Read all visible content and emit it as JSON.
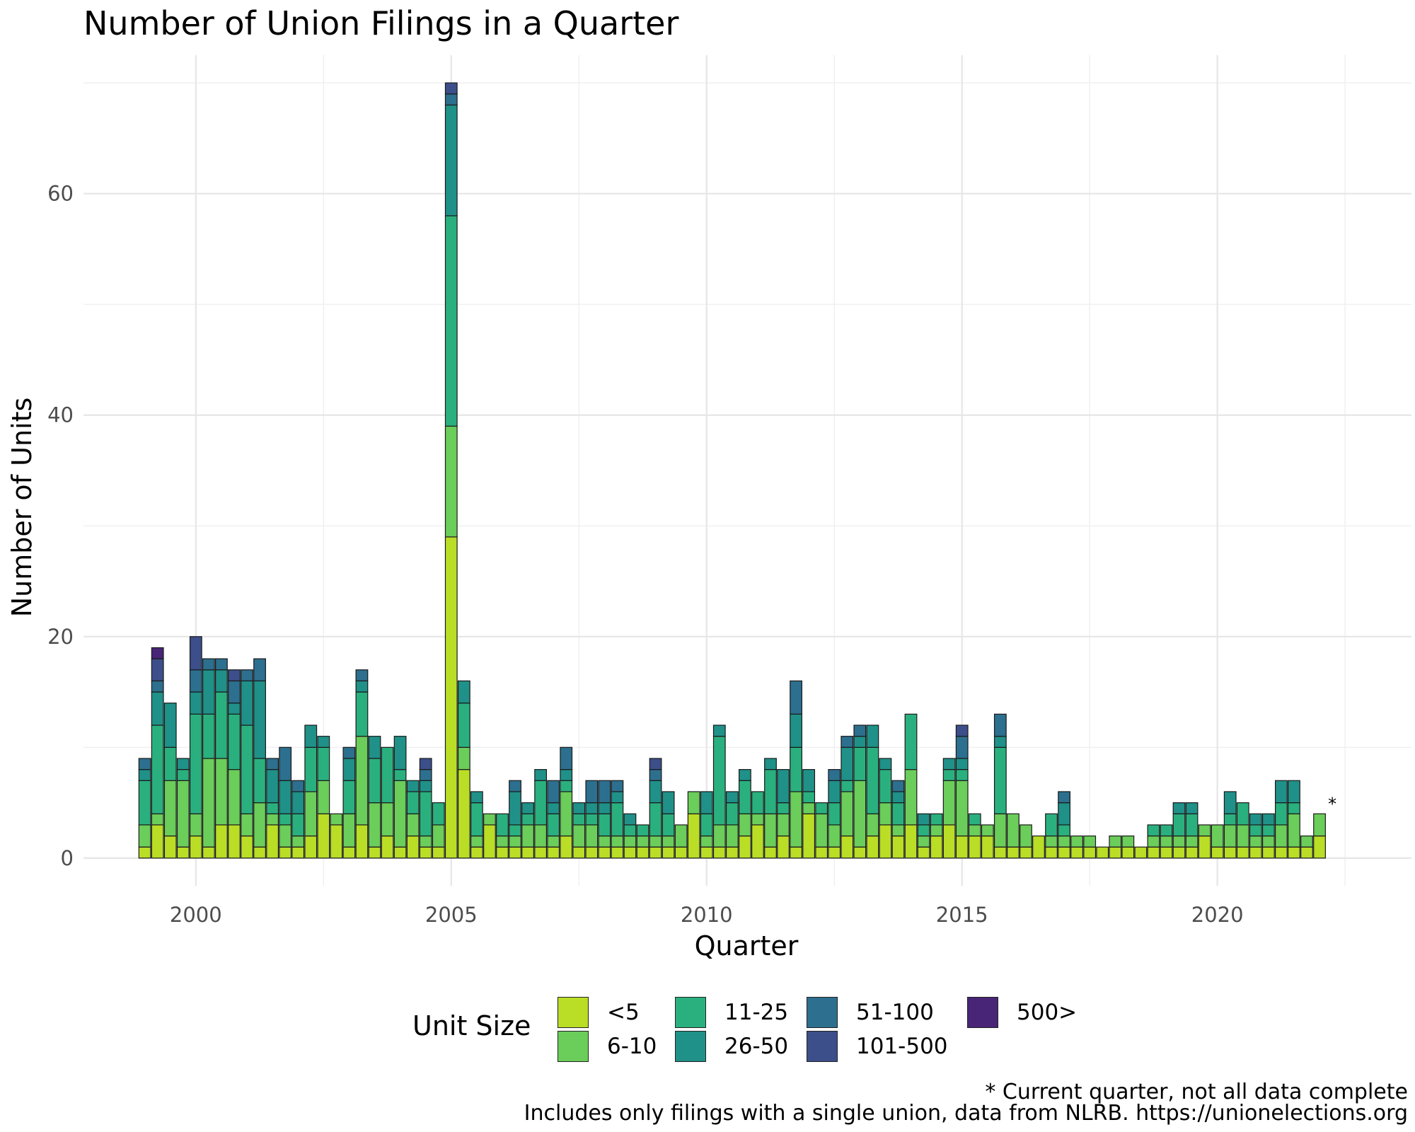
{
  "title": "Number of Union Filings in a Quarter",
  "footnotes": {
    "line1": "* Current quarter, not all data complete",
    "line2": "Includes only filings with a single union, data from NLRB. https://unionelections.org"
  },
  "legend": {
    "title": "Unit Size",
    "items": [
      {
        "label": "<5",
        "color": "#BADD26"
      },
      {
        "label": "6-10",
        "color": "#6BCD5A"
      },
      {
        "label": "11-25",
        "color": "#2AB07F"
      },
      {
        "label": "26-50",
        "color": "#1F9188"
      },
      {
        "label": "51-100",
        "color": "#2D6F8E"
      },
      {
        "label": "101-500",
        "color": "#3C4F8A"
      },
      {
        "label": "500>",
        "color": "#482576"
      }
    ]
  },
  "chart_data": {
    "type": "bar",
    "stacked": true,
    "xlabel": "Quarter",
    "ylabel": "Number of Units",
    "xlim": [
      1997.8,
      2023.8
    ],
    "ylim": [
      -2.5,
      72.5
    ],
    "xticks": [
      2000,
      2005,
      2010,
      2015,
      2020
    ],
    "yticks": [
      0,
      20,
      40,
      60
    ],
    "grid": true,
    "legend_position": "bottom",
    "annotation": {
      "text": "*",
      "x": 2022.25,
      "y": 4
    },
    "series_order": [
      "<5",
      "6-10",
      "11-25",
      "26-50",
      "51-100",
      "101-500",
      "500>"
    ],
    "x": [
      1999.0,
      1999.25,
      1999.5,
      1999.75,
      2000.0,
      2000.25,
      2000.5,
      2000.75,
      2001.0,
      2001.25,
      2001.5,
      2001.75,
      2002.0,
      2002.25,
      2002.5,
      2002.75,
      2003.0,
      2003.25,
      2003.5,
      2003.75,
      2004.0,
      2004.25,
      2004.5,
      2004.75,
      2005.0,
      2005.25,
      2005.5,
      2005.75,
      2006.0,
      2006.25,
      2006.5,
      2006.75,
      2007.0,
      2007.25,
      2007.5,
      2007.75,
      2008.0,
      2008.25,
      2008.5,
      2008.75,
      2009.0,
      2009.25,
      2009.5,
      2009.75,
      2010.0,
      2010.25,
      2010.5,
      2010.75,
      2011.0,
      2011.25,
      2011.5,
      2011.75,
      2012.0,
      2012.25,
      2012.5,
      2012.75,
      2013.0,
      2013.25,
      2013.5,
      2013.75,
      2014.0,
      2014.25,
      2014.5,
      2014.75,
      2015.0,
      2015.25,
      2015.5,
      2015.75,
      2016.0,
      2016.25,
      2016.5,
      2016.75,
      2017.0,
      2017.25,
      2017.5,
      2017.75,
      2018.0,
      2018.25,
      2018.5,
      2018.75,
      2019.0,
      2019.25,
      2019.5,
      2019.75,
      2020.0,
      2020.25,
      2020.5,
      2020.75,
      2021.0,
      2021.25,
      2021.5,
      2021.75,
      2022.0,
      2022.25
    ],
    "stacks": [
      [
        1,
        2,
        4,
        1,
        1
      ],
      [
        3,
        1,
        8,
        3,
        1,
        2,
        1
      ],
      [
        2,
        5,
        3,
        4
      ],
      [
        1,
        6,
        1,
        1
      ],
      [
        2,
        2,
        9,
        2,
        2,
        3
      ],
      [
        1,
        8,
        4,
        4,
        1
      ],
      [
        3,
        6,
        6,
        2,
        1
      ],
      [
        3,
        5,
        5,
        1,
        2,
        1
      ],
      [
        2,
        2,
        8,
        4,
        1
      ],
      [
        1,
        4,
        4,
        7,
        2
      ],
      [
        3,
        1,
        1,
        3,
        1
      ],
      [
        1,
        2,
        1,
        3,
        3
      ],
      [
        1,
        1,
        2,
        2,
        1
      ],
      [
        2,
        4,
        4,
        2
      ],
      [
        4,
        3,
        3,
        1
      ],
      [
        3,
        1
      ],
      [
        1,
        3,
        3,
        2,
        1
      ],
      [
        3,
        8,
        4,
        1,
        1
      ],
      [
        1,
        4,
        4,
        2
      ],
      [
        2,
        3,
        5
      ],
      [
        1,
        6,
        1,
        3
      ],
      [
        2,
        2,
        2,
        1
      ],
      [
        1,
        1,
        4,
        1,
        1,
        1
      ],
      [
        1,
        2,
        2
      ],
      [
        29,
        10,
        19,
        10,
        1,
        1
      ],
      [
        8,
        2,
        4,
        2
      ],
      [
        1,
        1,
        3,
        1
      ],
      [
        3,
        1
      ],
      [
        1,
        1,
        2
      ],
      [
        1,
        1,
        1,
        3,
        1
      ],
      [
        1,
        2,
        1,
        1
      ],
      [
        1,
        2,
        4,
        1
      ],
      [
        1,
        1,
        2,
        1,
        2
      ],
      [
        2,
        4,
        1,
        1,
        2
      ],
      [
        1,
        2,
        1,
        1
      ],
      [
        1,
        2,
        1,
        1,
        2
      ],
      [
        1,
        1,
        2,
        1,
        2
      ],
      [
        1,
        1,
        3,
        1,
        1
      ],
      [
        1,
        1,
        1,
        1
      ],
      [
        1,
        1,
        1
      ],
      [
        1,
        1,
        3,
        2,
        1,
        1
      ],
      [
        1,
        1,
        2,
        2
      ],
      [
        1,
        2
      ],
      [
        4,
        2
      ],
      [
        1,
        1,
        2,
        2
      ],
      [
        1,
        2,
        8,
        1
      ],
      [
        1,
        2,
        2,
        1
      ],
      [
        2,
        2,
        3,
        1
      ],
      [
        3,
        1,
        2
      ],
      [
        1,
        3,
        4,
        1
      ],
      [
        2,
        2,
        1,
        3
      ],
      [
        1,
        5,
        4,
        3,
        3
      ],
      [
        4,
        1,
        1,
        2
      ],
      [
        1,
        3,
        1
      ],
      [
        1,
        2,
        2,
        2,
        1
      ],
      [
        2,
        4,
        1,
        3,
        1
      ],
      [
        1,
        6,
        3,
        1,
        1
      ],
      [
        2,
        2,
        6,
        2
      ],
      [
        3,
        2,
        3,
        1
      ],
      [
        2,
        1,
        2,
        1,
        1
      ],
      [
        3,
        5,
        5
      ],
      [
        1,
        1,
        1,
        1
      ],
      [
        2,
        1,
        1
      ],
      [
        3,
        4,
        1,
        1
      ],
      [
        2,
        5,
        1,
        1,
        2,
        1
      ],
      [
        2,
        1,
        1
      ],
      [
        2,
        1
      ],
      [
        1,
        3,
        6,
        1,
        2
      ],
      [
        1,
        3
      ],
      [
        1,
        2
      ],
      [
        2
      ],
      [
        1,
        1,
        2
      ],
      [
        1,
        1,
        1,
        2,
        1
      ],
      [
        1,
        1
      ],
      [
        1,
        1
      ],
      [
        1
      ],
      [
        1,
        1
      ],
      [
        1,
        1
      ],
      [
        1
      ],
      [
        1,
        1,
        1
      ],
      [
        1,
        1,
        1
      ],
      [
        1,
        1,
        2,
        1
      ],
      [
        1,
        1,
        2,
        1
      ],
      [
        2,
        1
      ],
      [
        1,
        2
      ],
      [
        1,
        2,
        1,
        2
      ],
      [
        1,
        2,
        2
      ],
      [
        1,
        1,
        1,
        1
      ],
      [
        1,
        1,
        1,
        1
      ],
      [
        1,
        2,
        2,
        2
      ],
      [
        1,
        3,
        1,
        2
      ],
      [
        1,
        1
      ],
      [
        2,
        2
      ]
    ]
  }
}
